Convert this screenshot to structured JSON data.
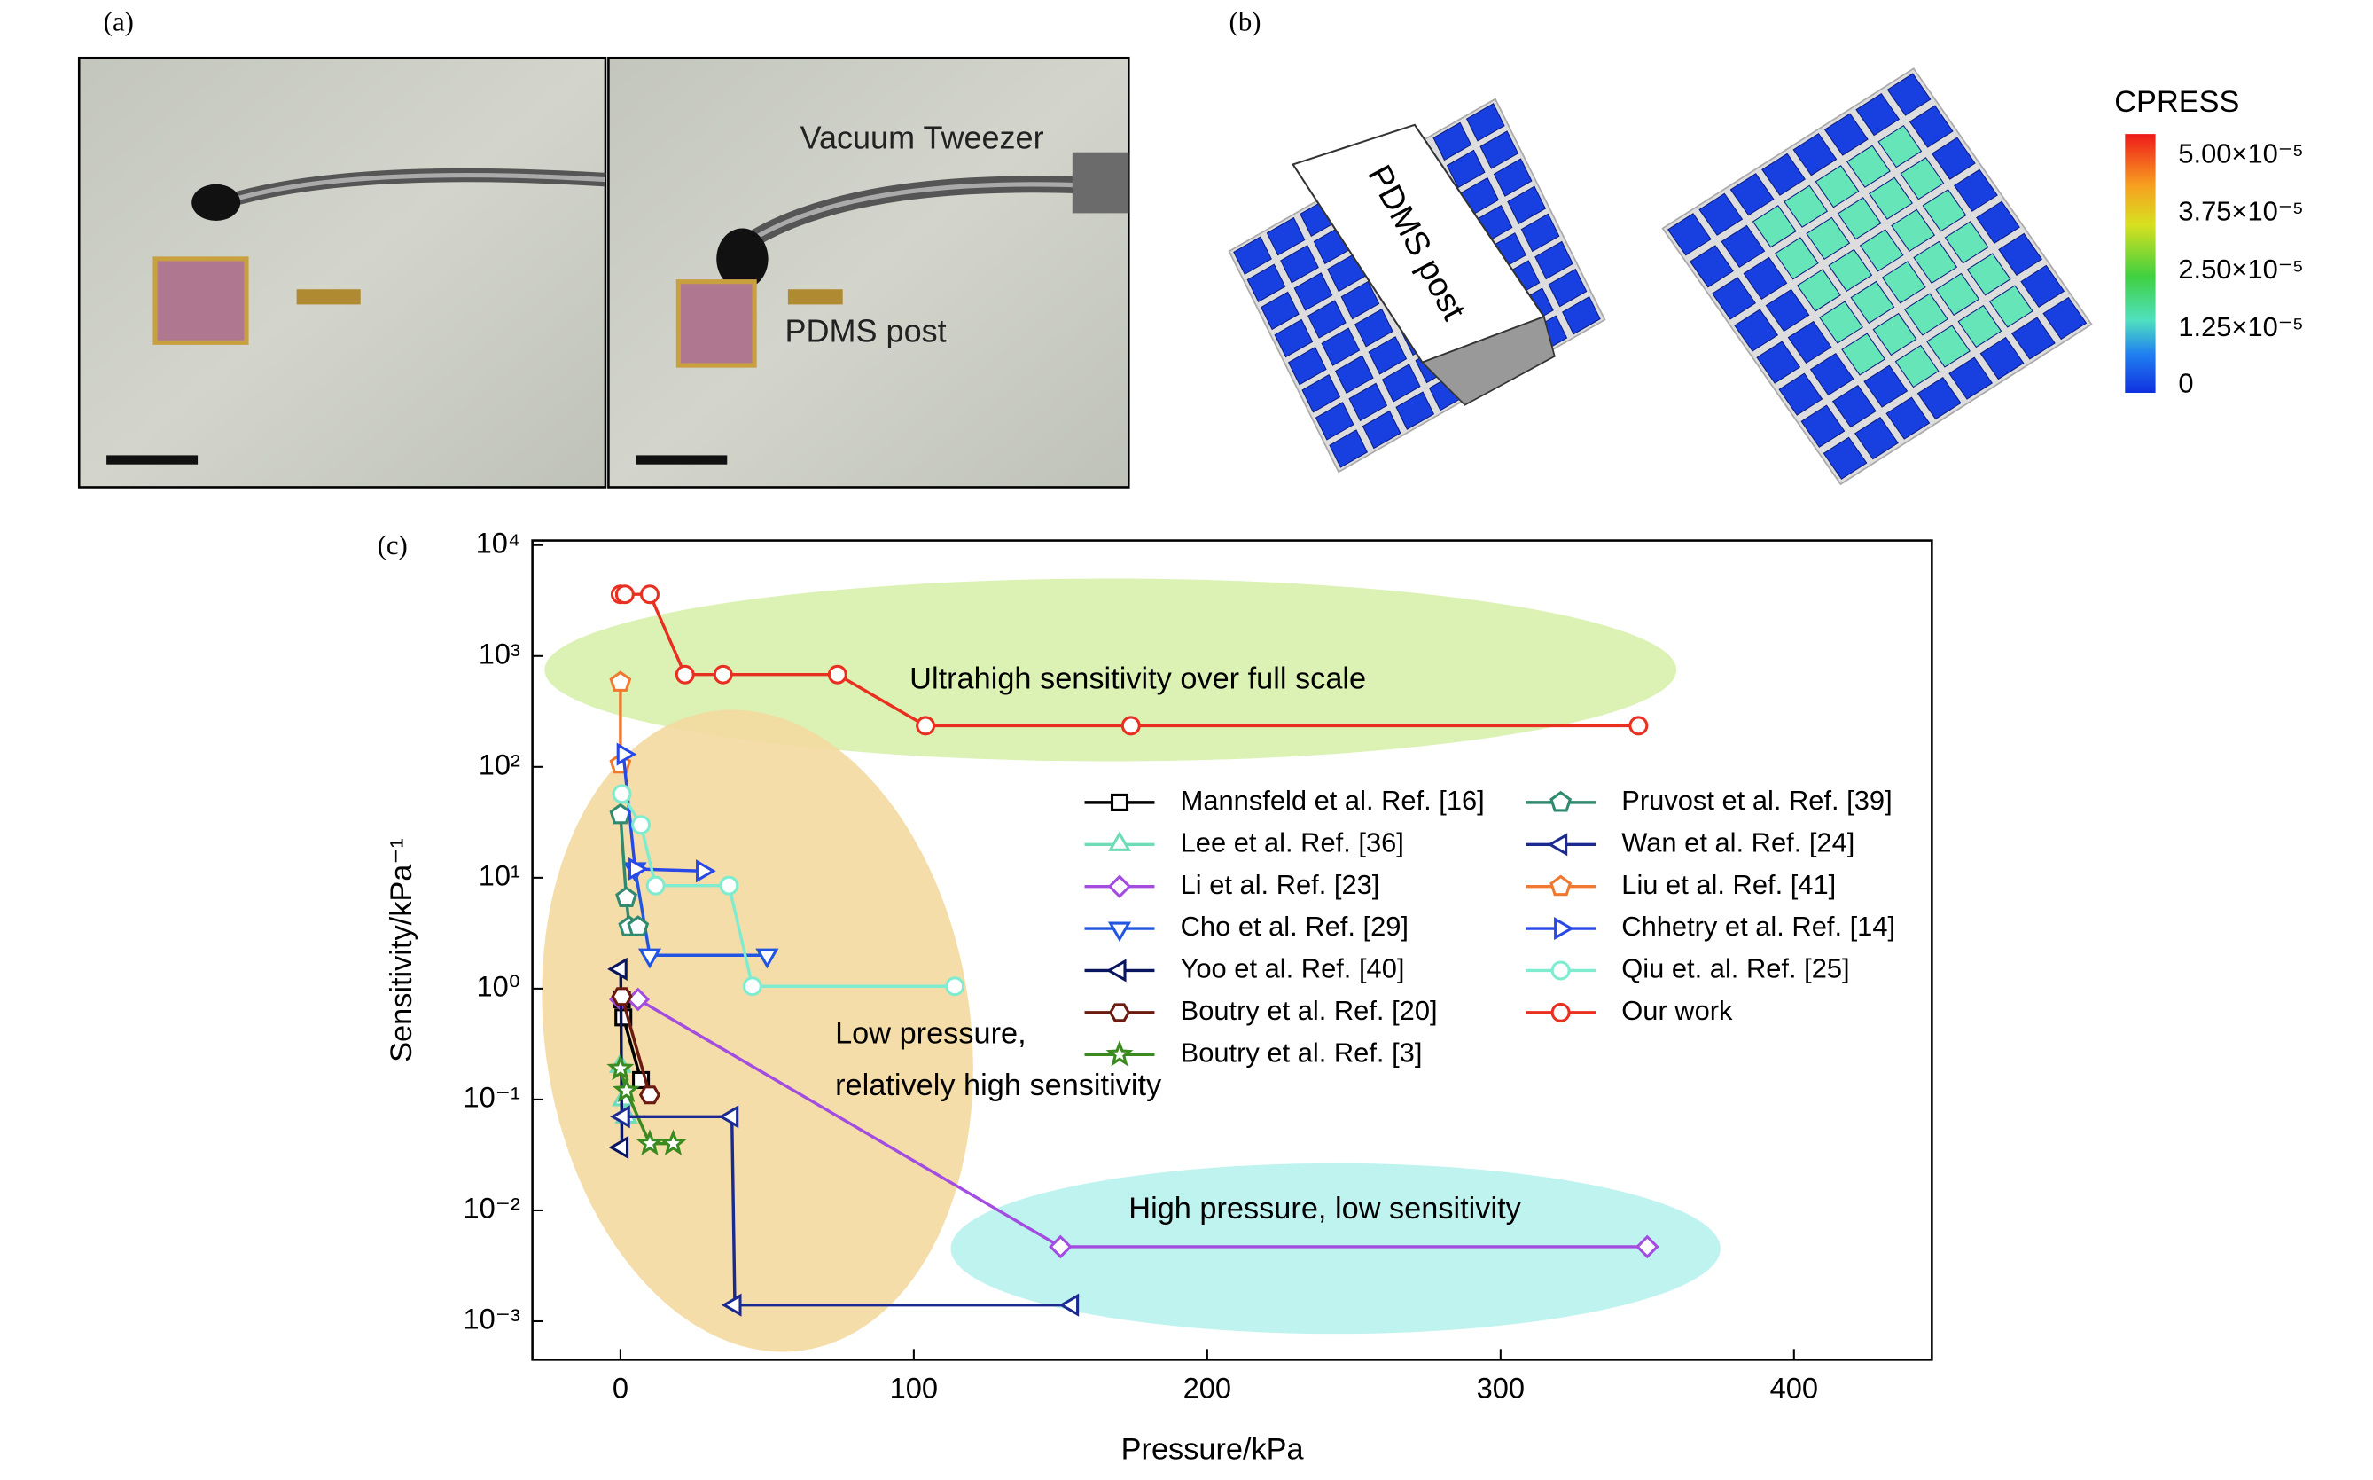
{
  "panel_a": {
    "label": "(a)",
    "annotations": [
      "Vacuum Tweezer",
      "PDMS post"
    ]
  },
  "panel_b": {
    "label": "(b)",
    "post_label": "PDMS post",
    "colorbar": {
      "title": "CPRESS",
      "labels": [
        "5.00×10⁻⁵",
        "3.75×10⁻⁵",
        "2.50×10⁻⁵",
        "1.25×10⁻⁵",
        "0"
      ]
    }
  },
  "chart_data": {
    "type": "line",
    "label": "(c)",
    "x_label": "Pressure/kPa",
    "y_label": "Sensitivity/kPa⁻¹",
    "xlim": [
      -30,
      447
    ],
    "xticks": [
      0,
      100,
      200,
      300,
      400
    ],
    "ylim": [
      0.00045,
      11000
    ],
    "y_scale": "log",
    "yticks": [
      {
        "value": 0.001,
        "label": "10⁻³"
      },
      {
        "value": 0.01,
        "label": "10⁻²"
      },
      {
        "value": 0.1,
        "label": "10⁻¹"
      },
      {
        "value": 1,
        "label": "10⁰"
      },
      {
        "value": 10,
        "label": "10¹"
      },
      {
        "value": 100,
        "label": "10²"
      },
      {
        "value": 1000,
        "label": "10³"
      },
      {
        "value": 10000,
        "label": "10⁴"
      }
    ],
    "annotations": [
      "Ultrahigh sensitivity over full scale",
      "Low pressure,",
      "relatively high sensitivity",
      "High pressure, low sensitivity"
    ],
    "series": [
      {
        "name": "Mannsfeld et al. Ref. [16]",
        "color": "#000000",
        "marker": "square",
        "x": [
          0.5,
          1,
          7
        ],
        "values": [
          0.8,
          0.55,
          0.15
        ]
      },
      {
        "name": "Lee et al. Ref. [36]",
        "color": "#6fdcb8",
        "marker": "triangle-up",
        "x": [
          0,
          1,
          2
        ],
        "values": [
          0.2,
          0.1,
          0.07
        ]
      },
      {
        "name": "Li et al. Ref. [23]",
        "color": "#a24de0",
        "marker": "diamond",
        "x": [
          0.1,
          6,
          150,
          350
        ],
        "values": [
          0.8,
          0.8,
          0.0047,
          0.0047
        ]
      },
      {
        "name": "Cho et al. Ref. [29]",
        "color": "#2255e0",
        "marker": "triangle-down",
        "x": [
          5,
          10,
          50
        ],
        "values": [
          12,
          2,
          2
        ]
      },
      {
        "name": "Yoo et al. Ref. [40]",
        "color": "#0a1560",
        "marker": "triangle-left",
        "x": [
          0.1,
          0.5
        ],
        "values": [
          1.5,
          0.037
        ]
      },
      {
        "name": "Boutry et al. Ref. [20]",
        "color": "#6b1a10",
        "marker": "hexagon",
        "x": [
          0.5,
          10
        ],
        "values": [
          0.85,
          0.11
        ]
      },
      {
        "name": "Boutry et al. Ref. [3]",
        "color": "#3a8a20",
        "marker": "star",
        "x": [
          0,
          2,
          10,
          18
        ],
        "values": [
          0.19,
          0.12,
          0.04,
          0.04
        ]
      },
      {
        "name": "Pruvost et al. Ref. [39]",
        "color": "#2f8a70",
        "marker": "pentagon",
        "x": [
          0,
          2,
          3,
          6
        ],
        "values": [
          37,
          6.6,
          3.6,
          3.6
        ]
      },
      {
        "name": "Wan et al. Ref. [24]",
        "color": "#1a2a90",
        "marker": "triangle-left",
        "x": [
          1,
          38,
          39,
          154
        ],
        "values": [
          0.07,
          0.07,
          0.0014,
          0.0014
        ]
      },
      {
        "name": "Liu et al. Ref. [41]",
        "color": "#f07830",
        "marker": "pentagon",
        "x": [
          0,
          0
        ],
        "values": [
          580,
          106
        ]
      },
      {
        "name": "Chhetry et al. Ref. [14]",
        "color": "#2848e8",
        "marker": "triangle-right",
        "x": [
          1,
          5,
          28
        ],
        "values": [
          130,
          12,
          11.5
        ]
      },
      {
        "name": "Qiu et. al. Ref. [25]",
        "color": "#7fecd0",
        "marker": "circle",
        "x": [
          0.5,
          7,
          12,
          37,
          45,
          114
        ],
        "values": [
          57,
          30,
          8.5,
          8.5,
          1.05,
          1.05
        ]
      },
      {
        "name": "Our work",
        "color": "#e83020",
        "marker": "circle",
        "x": [
          0,
          1.5,
          10,
          22,
          35,
          74,
          104,
          174,
          347
        ],
        "values": [
          3600,
          3600,
          3600,
          680,
          680,
          680,
          235,
          235,
          235
        ]
      }
    ]
  }
}
